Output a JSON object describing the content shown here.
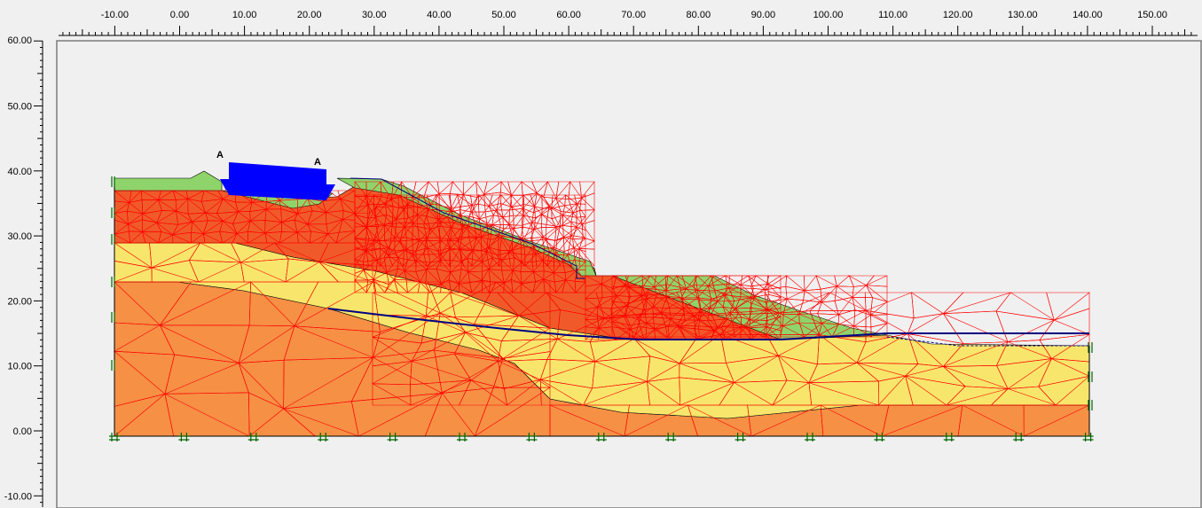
{
  "x_axis": {
    "ticks": [
      "-10.00",
      "0.00",
      "10.00",
      "20.00",
      "30.00",
      "40.00",
      "50.00",
      "60.00",
      "70.00",
      "80.00",
      "90.00",
      "100.00",
      "110.00",
      "120.00",
      "130.00",
      "140.00",
      "150.00"
    ]
  },
  "y_axis": {
    "ticks": [
      "50.00",
      "40.00",
      "30.00",
      "20.00",
      "10.00",
      "0.00",
      "-10.00"
    ],
    "top_partial": "60.00"
  },
  "labels": {
    "load_start": "A",
    "load_end": "A"
  },
  "colors": {
    "background": "#f0f0f0",
    "canvas": "#f0f0f0",
    "soil_orange": "#f59045",
    "soil_yellow": "#f7e66b",
    "soil_red": "#f05a2a",
    "soil_green": "#8fd46a",
    "mesh": "#ff0000",
    "phreatic": "#000080",
    "load": "#0000ff",
    "fixity": "#006400"
  }
}
